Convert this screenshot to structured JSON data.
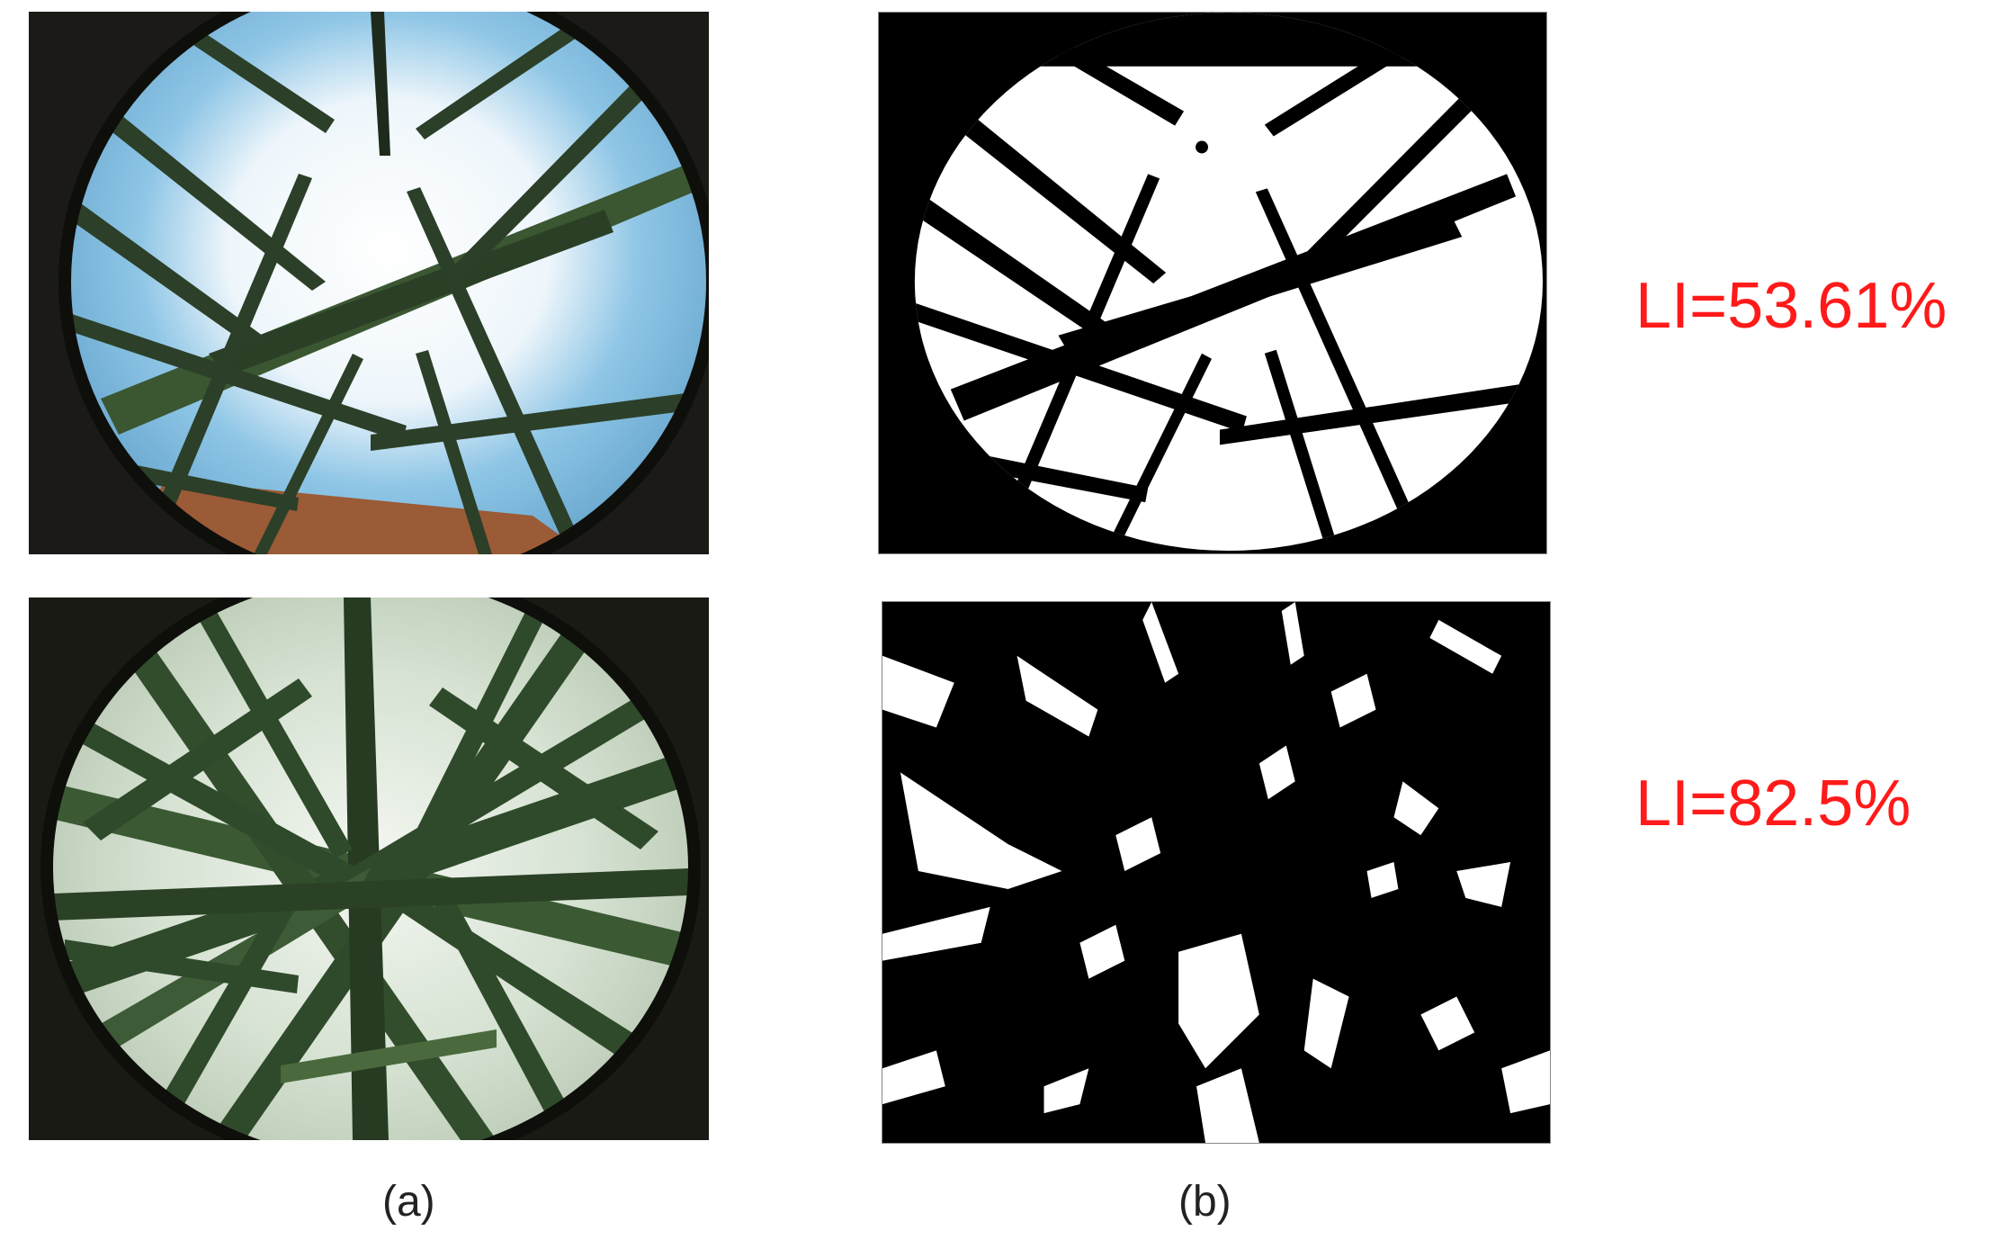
{
  "panels": {
    "a_caption": "(a)",
    "b_caption": "(b)"
  },
  "rows": [
    {
      "li_label": "LI=53.61%"
    },
    {
      "li_label": "LI=82.5%"
    }
  ],
  "colors": {
    "label_red": "#ff1a1a",
    "sky_blue": "#8fc6e6",
    "leaf_green": "#2f4a2a"
  }
}
